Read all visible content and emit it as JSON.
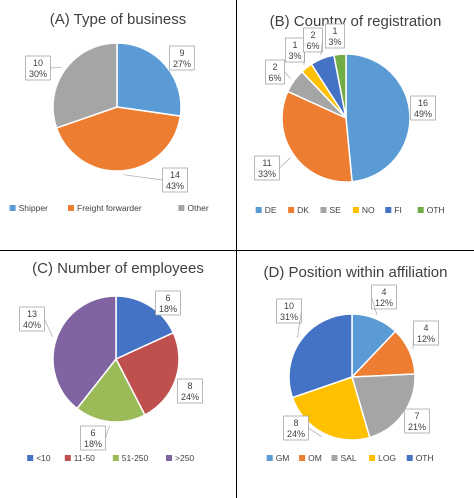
{
  "chart_data": [
    {
      "type": "pie",
      "title": "(A) Type of business",
      "categories": [
        "Shipper",
        "Freight forwarder",
        "Other"
      ],
      "values": [
        9,
        14,
        10
      ],
      "percent_labels": [
        "27%",
        "43%",
        "30%"
      ],
      "colors": [
        "#5b9bd5",
        "#ed7d31",
        "#a5a5a5"
      ],
      "legend_position": "bottom"
    },
    {
      "type": "pie",
      "title": "(B) Country of registration",
      "categories": [
        "DE",
        "DK",
        "SE",
        "NO",
        "FI",
        "OTH"
      ],
      "values": [
        16,
        11,
        2,
        1,
        2,
        1
      ],
      "percent_labels": [
        "49%",
        "33%",
        "6%",
        "3%",
        "6%",
        "3%"
      ],
      "colors": [
        "#5b9bd5",
        "#ed7d31",
        "#a5a5a5",
        "#ffc000",
        "#4472c4",
        "#70ad47"
      ],
      "legend_position": "bottom"
    },
    {
      "type": "pie",
      "title": "(C) Number of employees",
      "categories": [
        "<10",
        "11-50",
        "51-250",
        ">250"
      ],
      "values": [
        6,
        8,
        6,
        13
      ],
      "percent_labels": [
        "18%",
        "24%",
        "18%",
        "40%"
      ],
      "colors": [
        "#4472c4",
        "#c0504d",
        "#9bbb59",
        "#8064a2"
      ],
      "legend_position": "bottom"
    },
    {
      "type": "pie",
      "title": "(D) Position within affiliation",
      "categories": [
        "GM",
        "OM",
        "SAL",
        "LOG",
        "OTH"
      ],
      "values": [
        4,
        4,
        7,
        8,
        10
      ],
      "percent_labels": [
        "12%",
        "12%",
        "21%",
        "24%",
        "31%"
      ],
      "colors": [
        "#5b9bd5",
        "#ed7d31",
        "#a5a5a5",
        "#ffc000",
        "#4472c4"
      ],
      "legend_position": "bottom"
    }
  ]
}
